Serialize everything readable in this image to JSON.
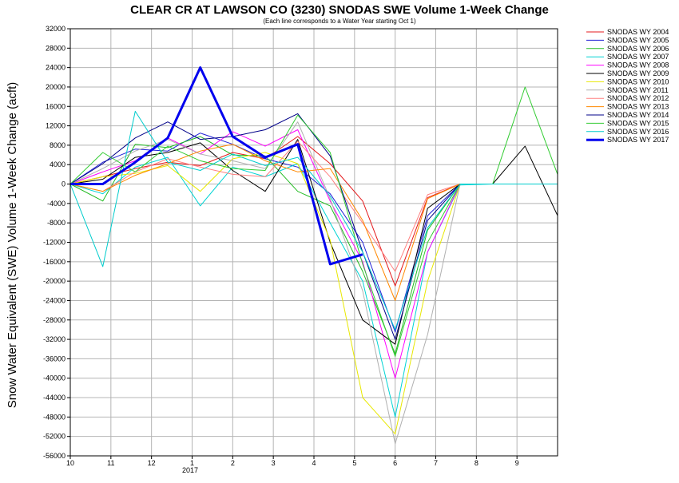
{
  "chart_data": {
    "type": "line",
    "title": "CLEAR CR AT LAWSON CO (3230) SNODAS SWE Volume 1-Week Change",
    "subtitle": "(Each line corresponds to a Water Year starting Oct 1)",
    "ylabel": "Snow Water Equivalent (SWE) Volume 1-Week Change (acft)",
    "xlabel": "",
    "ylim": [
      -56000,
      32000
    ],
    "y_ticks": [
      "32000",
      "28000",
      "24000",
      "20000",
      "16000",
      "12000",
      "8000",
      "4000",
      "0",
      "-4000",
      "-8000",
      "-12000",
      "-16000",
      "-20000",
      "-24000",
      "-28000",
      "-32000",
      "-36000",
      "-40000",
      "-44000",
      "-48000",
      "-52000",
      "-56000"
    ],
    "x_ticks": [
      "10",
      "11",
      "12",
      "1",
      "2",
      "3",
      "4",
      "5",
      "6",
      "7",
      "8",
      "9"
    ],
    "x_year_label": "2017",
    "grid": true,
    "legend_position": "right",
    "series": [
      {
        "name": "SNODAS WY 2004",
        "color": "#e41a1c",
        "values": [
          0,
          1500,
          3200,
          4500,
          3800,
          6500,
          5200,
          9800,
          4200,
          -3500,
          -21000,
          -2800,
          0,
          0,
          0,
          0
        ]
      },
      {
        "name": "SNODAS WY 2005",
        "color": "#1f1fd6",
        "values": [
          0,
          4500,
          7200,
          6800,
          10500,
          8200,
          5200,
          3500,
          -2000,
          -12000,
          -30500,
          -6500,
          0,
          0,
          0,
          0
        ]
      },
      {
        "name": "SNODAS WY 2006",
        "color": "#22bb22",
        "values": [
          0,
          -3500,
          8200,
          7500,
          9800,
          6000,
          5800,
          -1500,
          -4500,
          -18000,
          -35000,
          -9500,
          0,
          0,
          0,
          0
        ]
      },
      {
        "name": "SNODAS WY 2007",
        "color": "#00d4d4",
        "values": [
          0,
          -2000,
          3500,
          5500,
          -4500,
          3500,
          1500,
          4200,
          -8000,
          -20000,
          -48000,
          -14000,
          -200,
          0,
          0,
          0
        ]
      },
      {
        "name": "SNODAS WY 2008",
        "color": "#ff00ff",
        "values": [
          0,
          2500,
          4800,
          9500,
          6200,
          10800,
          7800,
          11200,
          -3500,
          -16000,
          -40000,
          -14000,
          0,
          0,
          0,
          0
        ]
      },
      {
        "name": "SNODAS WY 2009",
        "color": "#000000",
        "values": [
          0,
          1000,
          5500,
          6500,
          8500,
          2800,
          -1500,
          9200,
          -12000,
          -28000,
          -33000,
          -5000,
          0,
          0,
          7800,
          -6500
        ]
      },
      {
        "name": "SNODAS WY 2010",
        "color": "#e8e800",
        "values": [
          0,
          1500,
          2200,
          3800,
          -1500,
          5200,
          6500,
          4200,
          -11500,
          -44000,
          -51500,
          -20000,
          0,
          0,
          0,
          0
        ]
      },
      {
        "name": "SNODAS WY 2011",
        "color": "#b0b0b0",
        "values": [
          0,
          3200,
          6800,
          9200,
          6200,
          4800,
          3200,
          12800,
          -3000,
          -22000,
          -53500,
          -31000,
          0,
          0,
          0,
          0
        ]
      },
      {
        "name": "SNODAS WY 2012",
        "color": "#ff8080",
        "values": [
          0,
          -1500,
          2500,
          5200,
          3500,
          2000,
          1500,
          8800,
          1500,
          -8000,
          -18000,
          -2200,
          0,
          0,
          0,
          0
        ]
      },
      {
        "name": "SNODAS WY 2013",
        "color": "#ff8800",
        "values": [
          0,
          -1500,
          1800,
          4200,
          6800,
          8200,
          4800,
          2500,
          3200,
          -7500,
          -24000,
          -3000,
          0,
          0,
          0,
          0
        ]
      },
      {
        "name": "SNODAS WY 2014",
        "color": "#000088",
        "values": [
          0,
          4200,
          9500,
          12800,
          9200,
          9800,
          11200,
          14500,
          5800,
          -14000,
          -32000,
          -7500,
          0,
          0,
          0,
          0
        ]
      },
      {
        "name": "SNODAS WY 2015",
        "color": "#33cc33",
        "values": [
          0,
          6500,
          2500,
          7800,
          4800,
          3200,
          2800,
          14200,
          6500,
          -16500,
          -35500,
          -12000,
          0,
          0,
          20000,
          2000
        ]
      },
      {
        "name": "SNODAS WY 2016",
        "color": "#00cccc",
        "values": [
          0,
          -17000,
          15000,
          4500,
          2800,
          6200,
          3800,
          5500,
          -2500,
          -14000,
          -30000,
          -9000,
          0,
          0,
          0,
          0
        ]
      },
      {
        "name": "SNODAS WY 2017",
        "color": "#0000ee",
        "values": [
          0,
          0,
          4500,
          9500,
          24000,
          9800,
          5500,
          8200,
          -16500,
          -14500,
          null,
          null,
          null,
          null,
          null,
          null
        ]
      }
    ]
  }
}
